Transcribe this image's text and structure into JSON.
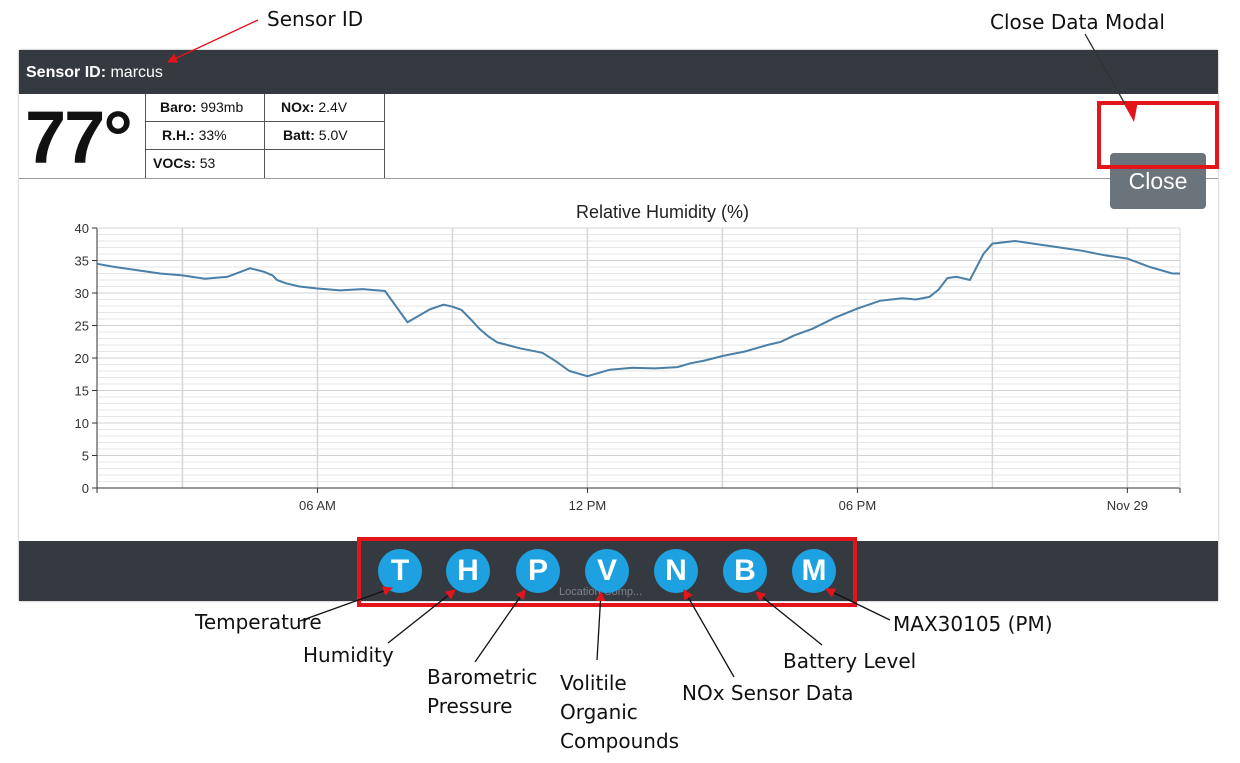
{
  "annotations": {
    "sensor_id": "Sensor ID",
    "close_modal": "Close Data Modal",
    "temperature": "Temperature",
    "humidity": "Humidity",
    "barometric_line1": "Barometric",
    "barometric_line2": "Pressure",
    "voc_line1": "Volitile",
    "voc_line2": "Organic",
    "voc_line3": "Compounds",
    "nox": "NOx Sensor Data",
    "battery": "Battery Level",
    "max": "MAX30105 (PM)"
  },
  "header": {
    "label": "Sensor ID:",
    "value": "marcus"
  },
  "stats": {
    "temperature": "77°",
    "baro_label": "Baro:",
    "baro_value": "993mb",
    "nox_label": "NOx:",
    "nox_value": "2.4V",
    "rh_label": "R.H.:",
    "rh_value": "33%",
    "batt_label": "Batt:",
    "batt_value": "5.0V",
    "voc_label": "VOCs:",
    "voc_value": "53"
  },
  "close_label": "Close",
  "footer": {
    "buttons": [
      "T",
      "H",
      "P",
      "V",
      "N",
      "B",
      "M"
    ],
    "partial_text": "Location Comp..."
  },
  "colors": {
    "header_bg": "#353a40",
    "button_blue": "#1da1e0",
    "highlight_red": "#e3141a",
    "line": "#4a7fa8"
  },
  "chart_data": {
    "type": "line",
    "title": "Relative Humidity (%)",
    "xlabel": "",
    "ylabel": "",
    "ylim": [
      0,
      40
    ],
    "yticks": [
      0,
      5,
      10,
      15,
      20,
      25,
      30,
      35,
      40
    ],
    "xticks": [
      "06 AM",
      "12 PM",
      "06 PM",
      "Nov 29"
    ],
    "x_unit": "hours since midnight Nov 28",
    "xlim": [
      1.1,
      25.17
    ],
    "grid": true,
    "series": [
      {
        "name": "Relative Humidity",
        "x": [
          1.1,
          1.5,
          2.0,
          2.5,
          3.0,
          3.5,
          4.0,
          4.5,
          4.8,
          5.0,
          5.1,
          5.3,
          5.6,
          6.0,
          6.5,
          7.0,
          7.5,
          8.0,
          8.5,
          8.8,
          9.0,
          9.2,
          9.4,
          9.6,
          9.8,
          10.0,
          10.5,
          11.0,
          11.3,
          11.6,
          12.0,
          12.5,
          13.0,
          13.5,
          14.0,
          14.3,
          14.6,
          15.0,
          15.5,
          16.0,
          16.3,
          16.6,
          17.0,
          17.5,
          18.0,
          18.5,
          19.0,
          19.3,
          19.6,
          19.8,
          20.0,
          20.2,
          20.5,
          20.8,
          21.0,
          21.5,
          22.0,
          22.5,
          23.0,
          23.5,
          24.0,
          24.5,
          25.0,
          25.17
        ],
        "y": [
          34.5,
          34.0,
          33.5,
          33.0,
          32.7,
          32.2,
          32.5,
          33.8,
          33.3,
          32.7,
          32.0,
          31.5,
          31.0,
          30.7,
          30.4,
          30.6,
          30.3,
          25.5,
          27.5,
          28.2,
          27.9,
          27.4,
          26.0,
          24.5,
          23.3,
          22.4,
          21.5,
          20.8,
          19.5,
          18.0,
          17.2,
          18.2,
          18.5,
          18.4,
          18.6,
          19.2,
          19.6,
          20.3,
          21.0,
          22.0,
          22.5,
          23.5,
          24.5,
          26.2,
          27.6,
          28.8,
          29.2,
          29.0,
          29.4,
          30.5,
          32.3,
          32.5,
          32.0,
          36.0,
          37.6,
          38.0,
          37.5,
          37.0,
          36.5,
          35.8,
          35.3,
          34.0,
          33.0,
          33.0
        ]
      }
    ]
  }
}
